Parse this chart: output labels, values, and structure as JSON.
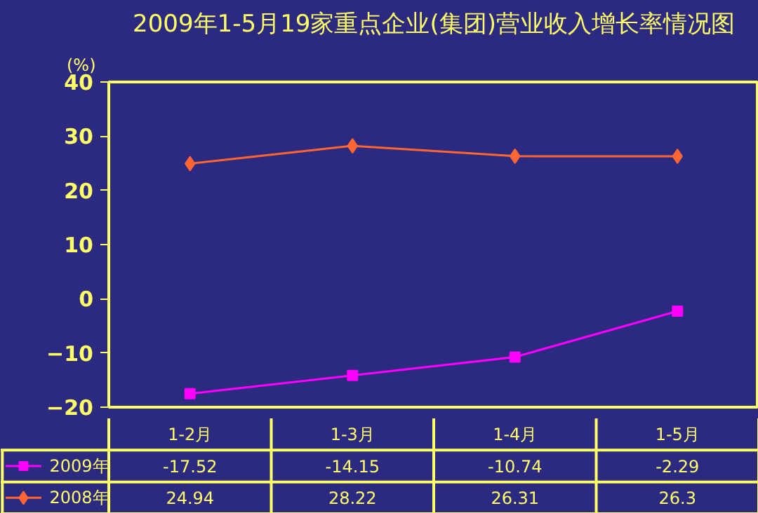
{
  "chart_data": {
    "type": "line",
    "title": "2009年1-5月19家重点企业(集团)营业收入增长率情况图",
    "ylabel": "(%)",
    "categories": [
      "1-2月",
      "1-3月",
      "1-4月",
      "1-5月"
    ],
    "series": [
      {
        "name": "2009年",
        "color": "#ff00ff",
        "marker": "square",
        "values": [
          -17.52,
          -14.15,
          -10.74,
          -2.29
        ]
      },
      {
        "name": "2008年",
        "color": "#ff6633",
        "marker": "diamond",
        "values": [
          24.94,
          28.22,
          26.31,
          26.3
        ]
      }
    ],
    "ylim": [
      -20,
      40
    ],
    "yticks": [
      -20,
      -10,
      0,
      10,
      20,
      30,
      40
    ],
    "grid": false,
    "legend": "bottom",
    "data_labels": true
  }
}
